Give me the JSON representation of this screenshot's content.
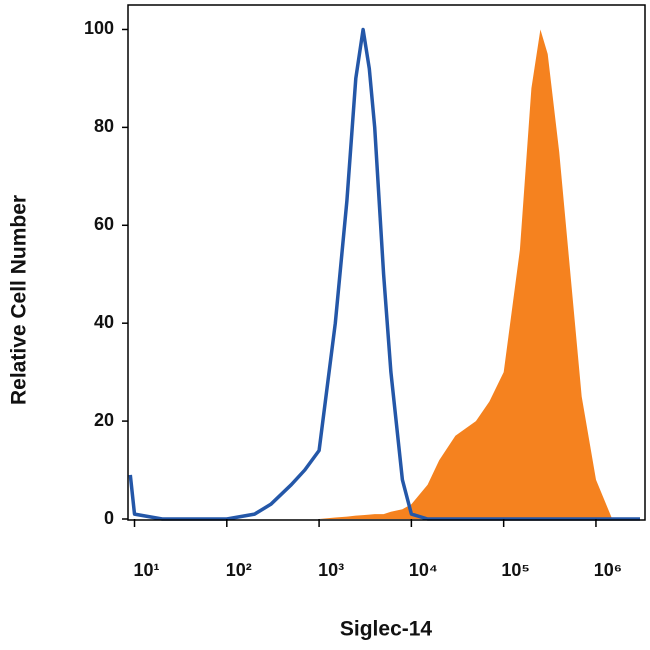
{
  "chart_data": {
    "type": "histogram-overlay",
    "x_label": "Siglec-14",
    "y_label": "Relative Cell Number",
    "x_scale": "log",
    "xlim": [
      8.5,
      3400000
    ],
    "xticks": [
      {
        "value": 10,
        "label": "10¹"
      },
      {
        "value": 100,
        "label": "10²"
      },
      {
        "value": 1000,
        "label": "10³"
      },
      {
        "value": 10000,
        "label": "10⁴"
      },
      {
        "value": 100000,
        "label": "10⁵"
      },
      {
        "value": 1000000,
        "label": "10⁶"
      }
    ],
    "ylim": [
      0,
      105
    ],
    "yticks": [
      0,
      20,
      40,
      60,
      80,
      100
    ],
    "x": [
      9,
      10,
      20,
      50,
      100,
      200,
      300,
      500,
      700,
      1000,
      1500,
      2000,
      2500,
      3000,
      3500,
      4000,
      5000,
      6000,
      8000,
      10000,
      15000,
      20000,
      30000,
      50000,
      70000,
      100000,
      150000,
      200000,
      250000,
      300000,
      400000,
      500000,
      700000,
      1000000,
      1500000,
      3000000
    ],
    "series": [
      {
        "color": "#f5821f",
        "fill": true,
        "values": [
          0,
          0,
          0,
          0,
          0,
          0,
          0,
          0,
          0,
          0,
          0.3,
          0.5,
          0.7,
          0.8,
          0.9,
          1,
          1,
          1.5,
          2,
          3,
          7,
          12,
          17,
          20,
          24,
          30,
          55,
          88,
          100,
          95,
          75,
          55,
          25,
          8,
          0,
          0
        ]
      },
      {
        "color": "#2457a8",
        "fill": false,
        "values": [
          9,
          1,
          0,
          0,
          0,
          1,
          3,
          7,
          10,
          14,
          40,
          65,
          90,
          100,
          92,
          80,
          50,
          30,
          8,
          1,
          0,
          0,
          0,
          0,
          0,
          0,
          0,
          0,
          0,
          0,
          0,
          0,
          0,
          0,
          0,
          0
        ]
      }
    ]
  }
}
